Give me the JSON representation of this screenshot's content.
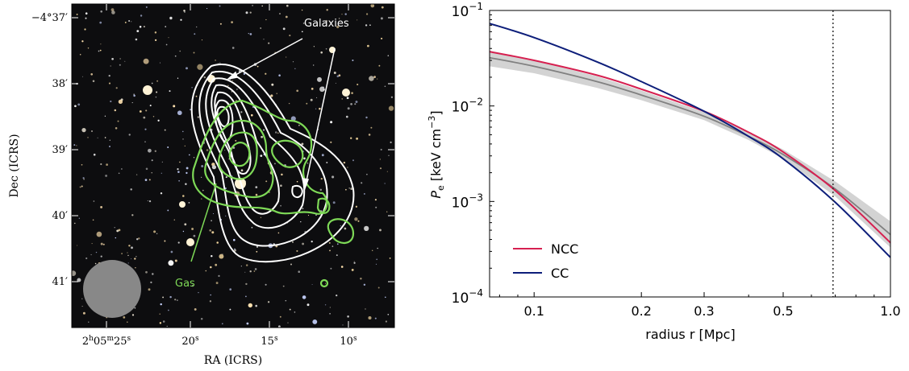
{
  "figure": {
    "left_panel": {
      "type": "sky-image-with-contours",
      "ylabel": "Dec (ICRS)",
      "xlabel": "RA (ICRS)",
      "dec_ticks": [
        "−4°37′",
        "38′",
        "39′",
        "40′",
        "41′"
      ],
      "ra_ticks": [
        {
          "h": "2",
          "m": "05",
          "s": "25"
        },
        {
          "s": "20"
        },
        {
          "s": "15"
        },
        {
          "s": "10"
        }
      ],
      "annotations": [
        {
          "text": "Galaxies",
          "color": "#ffffff"
        },
        {
          "text": "Gas",
          "color": "#7ed957"
        }
      ],
      "contour_colors": {
        "galaxies": "#ffffff",
        "gas": "#7ed957"
      },
      "beam_color": "#888888"
    },
    "chart_data": {
      "type": "line",
      "xscale": "log",
      "yscale": "log",
      "xlim": [
        0.075,
        1.0
      ],
      "ylim": [
        0.0001,
        0.1
      ],
      "xlabel": "radius r [Mpc]",
      "ylabel_main": "P",
      "ylabel_sub": "e",
      "ylabel_units": " [keV cm",
      "ylabel_exp": "−3",
      "ylabel_close": "]",
      "xtick_values": [
        0.1,
        0.2,
        0.3,
        0.5,
        1.0
      ],
      "xtick_labels": [
        "0.1",
        "0.2",
        "0.3",
        "0.5",
        "1.0"
      ],
      "ytick_values": [
        0.0001,
        0.001,
        0.01,
        0.1
      ],
      "ytick_labels": [
        {
          "base": "10",
          "exp": "−4"
        },
        {
          "base": "10",
          "exp": "−3"
        },
        {
          "base": "10",
          "exp": "−2"
        },
        {
          "base": "10",
          "exp": "−1"
        }
      ],
      "vline_x": 0.69,
      "legend_position": "lower-left",
      "series": [
        {
          "name": "NCC",
          "color": "#d62050",
          "x": [
            0.075,
            0.1,
            0.15,
            0.2,
            0.3,
            0.4,
            0.5,
            0.7,
            1.0
          ],
          "y": [
            0.037,
            0.03,
            0.021,
            0.015,
            0.0088,
            0.0053,
            0.0033,
            0.0013,
            0.00037
          ]
        },
        {
          "name": "CC",
          "color": "#0d1e7a",
          "x": [
            0.075,
            0.1,
            0.15,
            0.2,
            0.3,
            0.4,
            0.5,
            0.7,
            1.0
          ],
          "y": [
            0.073,
            0.052,
            0.029,
            0.018,
            0.0088,
            0.0048,
            0.0028,
            0.00098,
            0.00026
          ]
        }
      ],
      "reference": {
        "color": "#808080",
        "band_color": "#d3d3d3",
        "x": [
          0.075,
          0.1,
          0.15,
          0.2,
          0.3,
          0.4,
          0.5,
          0.7,
          1.0
        ],
        "y": [
          0.032,
          0.026,
          0.018,
          0.013,
          0.0078,
          0.0048,
          0.0031,
          0.00135,
          0.00045
        ],
        "lo": [
          0.026,
          0.022,
          0.0155,
          0.0115,
          0.0071,
          0.0044,
          0.0028,
          0.00113,
          0.00033
        ],
        "hi": [
          0.038,
          0.03,
          0.0205,
          0.0145,
          0.0086,
          0.0053,
          0.0035,
          0.00162,
          0.00062
        ]
      }
    }
  }
}
